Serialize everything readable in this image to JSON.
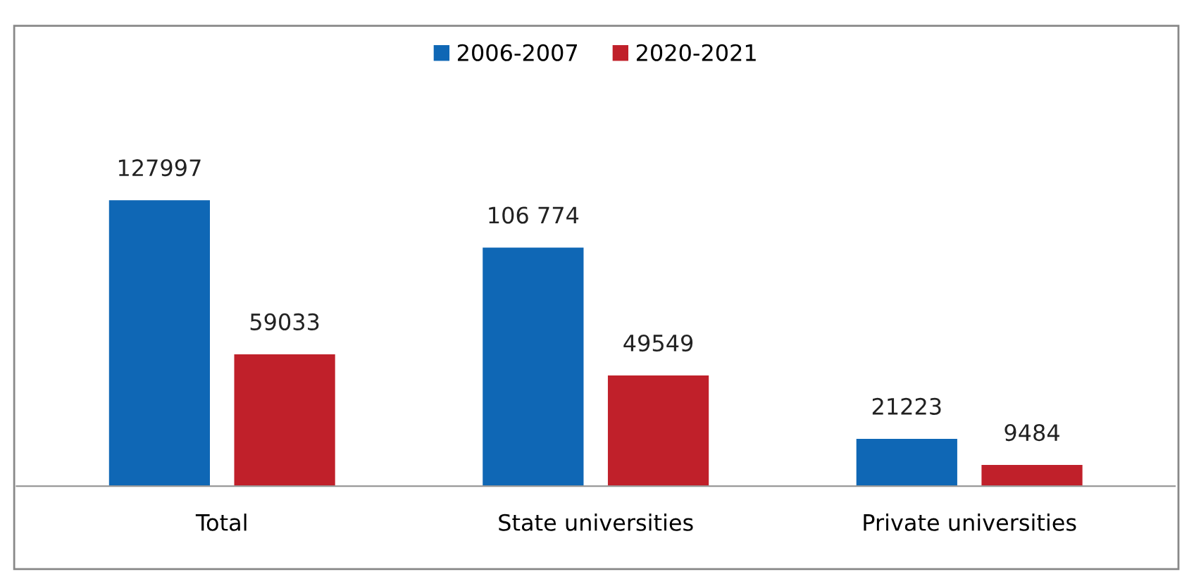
{
  "chart_data": {
    "type": "bar",
    "categories": [
      "Total",
      "State universities",
      "Private universities"
    ],
    "series": [
      {
        "name": "2006-2007",
        "color": "#0f67b5",
        "values": [
          127997,
          106774,
          21223
        ],
        "value_labels": [
          "127997",
          "106 774",
          "21223"
        ]
      },
      {
        "name": "2020-2021",
        "color": "#c0202a",
        "values": [
          59033,
          49549,
          9484
        ],
        "value_labels": [
          "59033",
          "49549",
          "9484"
        ]
      }
    ],
    "legend": "top",
    "grid": false
  }
}
